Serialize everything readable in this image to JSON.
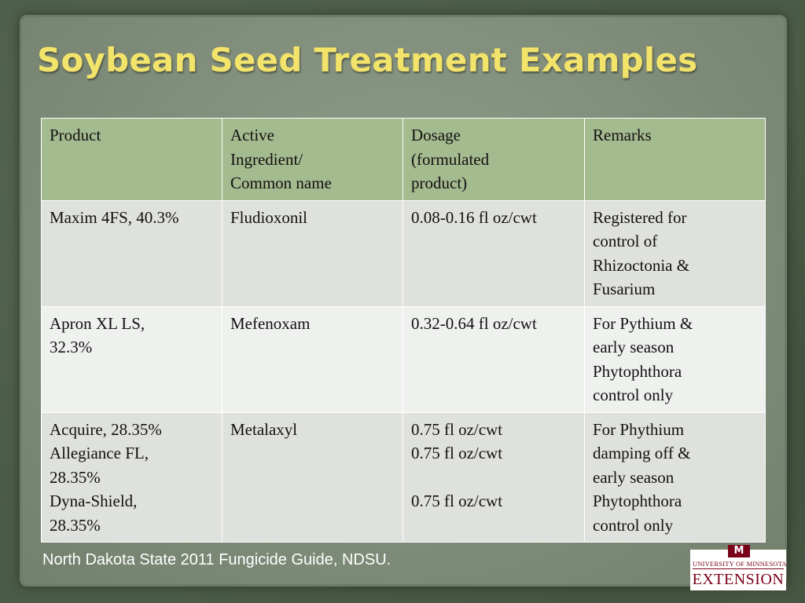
{
  "slide": {
    "title": "Soybean Seed Treatment Examples",
    "source": "North Dakota State 2011 Fungicide Guide, NDSU."
  },
  "table": {
    "headers": [
      [
        "Product"
      ],
      [
        "Active",
        "Ingredient/",
        "Common name"
      ],
      [
        "Dosage",
        "(formulated",
        "product)"
      ],
      [
        "Remarks"
      ]
    ],
    "rows": [
      [
        [
          "Maxim 4FS, 40.3%"
        ],
        [
          "Fludioxonil"
        ],
        [
          "0.08-0.16 fl oz/cwt"
        ],
        [
          "Registered for",
          "control of",
          "Rhizoctonia &",
          "Fusarium"
        ]
      ],
      [
        [
          "Apron XL LS,",
          "32.3%"
        ],
        [
          "Mefenoxam"
        ],
        [
          "0.32-0.64 fl oz/cwt"
        ],
        [
          "For Pythium &",
          "early season",
          "Phytophthora",
          "control only"
        ]
      ],
      [
        [
          "Acquire, 28.35%",
          "Allegiance FL,",
          "28.35%",
          "Dyna-Shield,",
          "28.35%"
        ],
        [
          "Metalaxyl"
        ],
        [
          "0.75 fl oz/cwt",
          "0.75 fl oz/cwt",
          "",
          "0.75 fl oz/cwt"
        ],
        [
          "For Phythium",
          "damping off &",
          "early season",
          "Phytophthora",
          "control only"
        ]
      ]
    ]
  },
  "logo": {
    "mark": "M",
    "university": "UNIVERSITY OF MINNESOTA",
    "extension": "EXTENSION",
    "color": "#7a0019"
  },
  "colors": {
    "title": "#f2e36a",
    "header_bg": "#a4ba8f",
    "row_odd_bg": "#dfe1dd",
    "row_even_bg": "#eef1ee",
    "panel_bg": "#808d7a",
    "outer_bg": "#4b5c46"
  }
}
